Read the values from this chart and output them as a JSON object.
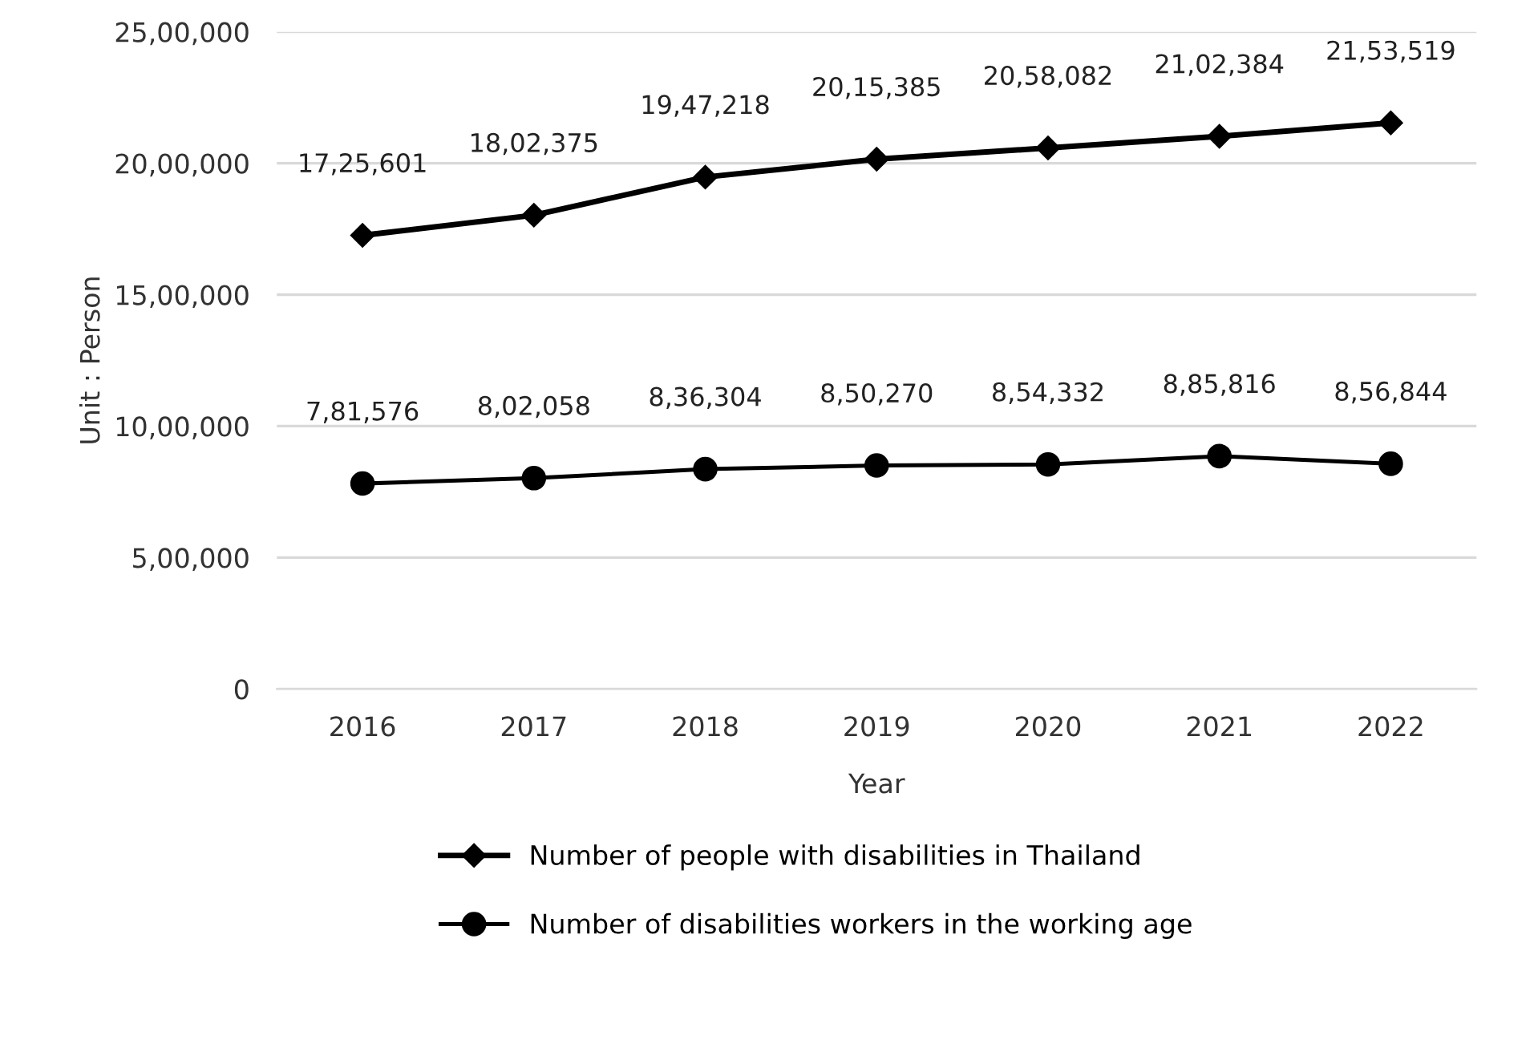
{
  "chart_data": {
    "type": "line",
    "xlabel": "Year",
    "ylabel": "Unit : Person",
    "categories": [
      "2016",
      "2017",
      "2018",
      "2019",
      "2020",
      "2021",
      "2022"
    ],
    "series": [
      {
        "name": "Number of people with disabilities in Thailand",
        "color": "#000000",
        "marker": "diamond",
        "values": [
          1725601,
          1802375,
          1947218,
          2015385,
          2058082,
          2102384,
          2153519
        ],
        "value_labels": [
          "17,25,601",
          "18,02,375",
          "19,47,218",
          "20,15,385",
          "20,58,082",
          "21,02,384",
          "21,53,519"
        ]
      },
      {
        "name": "Number of disabilities workers in the working age",
        "color": "#000000",
        "marker": "circle",
        "values": [
          781576,
          802058,
          836304,
          850270,
          854332,
          885816,
          856844
        ],
        "value_labels": [
          "7,81,576",
          "8,02,058",
          "8,36,304",
          "8,50,270",
          "8,54,332",
          "8,85,816",
          "8,56,844"
        ]
      }
    ],
    "ylim": [
      0,
      2500000
    ],
    "yticks": [
      {
        "value": 0,
        "label": "0"
      },
      {
        "value": 500000,
        "label": "5,00,000"
      },
      {
        "value": 1000000,
        "label": "10,00,000"
      },
      {
        "value": 1500000,
        "label": "15,00,000"
      },
      {
        "value": 2000000,
        "label": "20,00,000"
      },
      {
        "value": 2500000,
        "label": "25,00,000"
      }
    ],
    "grid": "y",
    "legend": "bottom",
    "line_style": "solid"
  }
}
